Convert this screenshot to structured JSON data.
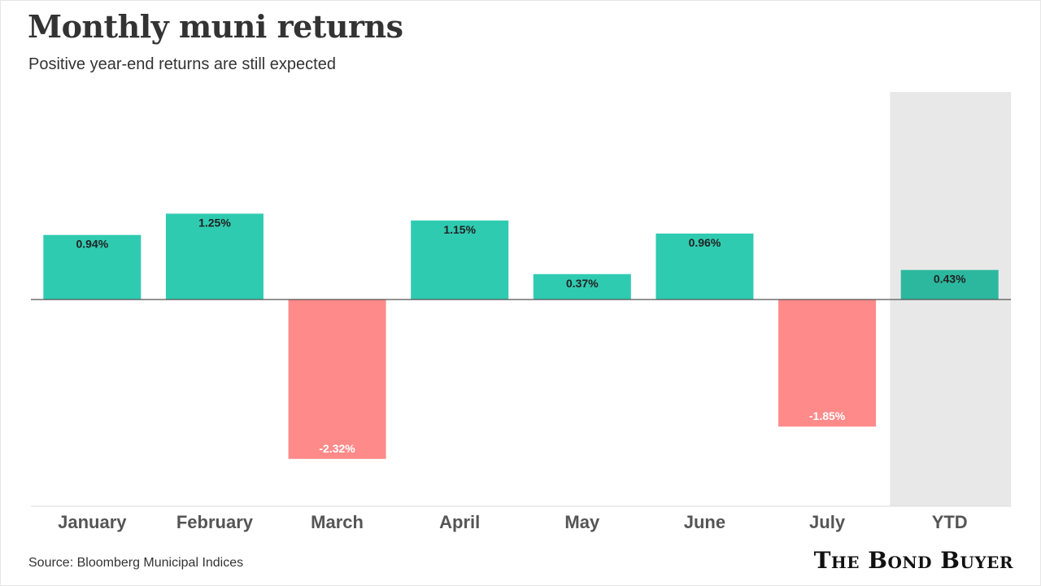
{
  "title": "Monthly muni returns",
  "subtitle": "Positive year-end returns are still expected",
  "source": "Source: Bloomberg Municipal Indices",
  "brand": "The Bond Buyer",
  "colors": {
    "positive": "#2fcbb1",
    "negative": "#ff8a8a",
    "ytd_bar": "#2cb89f",
    "ytd_band": "#e8e8e8",
    "axis": "#555555",
    "text": "#333333"
  },
  "chart_data": {
    "type": "bar",
    "categories": [
      "January",
      "February",
      "March",
      "April",
      "May",
      "June",
      "July",
      "YTD"
    ],
    "values": [
      0.94,
      1.25,
      -2.32,
      1.15,
      0.37,
      0.96,
      -1.85,
      0.43
    ],
    "labels": [
      "0.94%",
      "1.25%",
      "-2.32%",
      "1.15%",
      "0.37%",
      "0.96%",
      "-1.85%",
      "0.43%"
    ],
    "highlight_category": "YTD",
    "ylim": [
      -3.0,
      3.0
    ],
    "grid": false,
    "legend": "none"
  }
}
